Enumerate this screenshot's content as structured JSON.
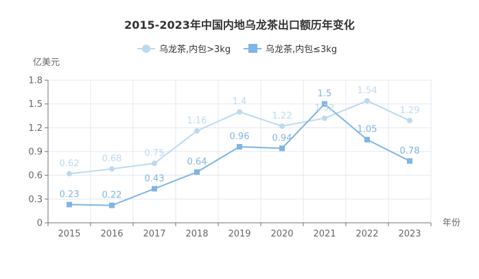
{
  "chart_data": {
    "type": "line",
    "title": "2015-2023年中国内地乌龙茶出口额历年变化",
    "ylabel": "亿美元",
    "xlabel": "年份",
    "categories": [
      "2015",
      "2016",
      "2017",
      "2018",
      "2019",
      "2020",
      "2021",
      "2022",
      "2023"
    ],
    "ylim": [
      0,
      1.8
    ],
    "yticks": [
      0,
      0.3,
      0.6,
      0.9,
      1.2,
      1.5,
      1.8
    ],
    "grid": true,
    "legend_position": "top-center",
    "series": [
      {
        "name": "乌龙茶,内包>3kg",
        "values": [
          0.62,
          0.68,
          0.75,
          1.16,
          1.4,
          1.22,
          1.32,
          1.54,
          1.29
        ],
        "marker": "circle",
        "color": "#bcd9f1"
      },
      {
        "name": "乌龙茶,内包≤3kg",
        "values": [
          0.23,
          0.22,
          0.43,
          0.64,
          0.96,
          0.94,
          1.5,
          1.05,
          0.78
        ],
        "marker": "square",
        "color": "#7fb4e6"
      }
    ]
  }
}
